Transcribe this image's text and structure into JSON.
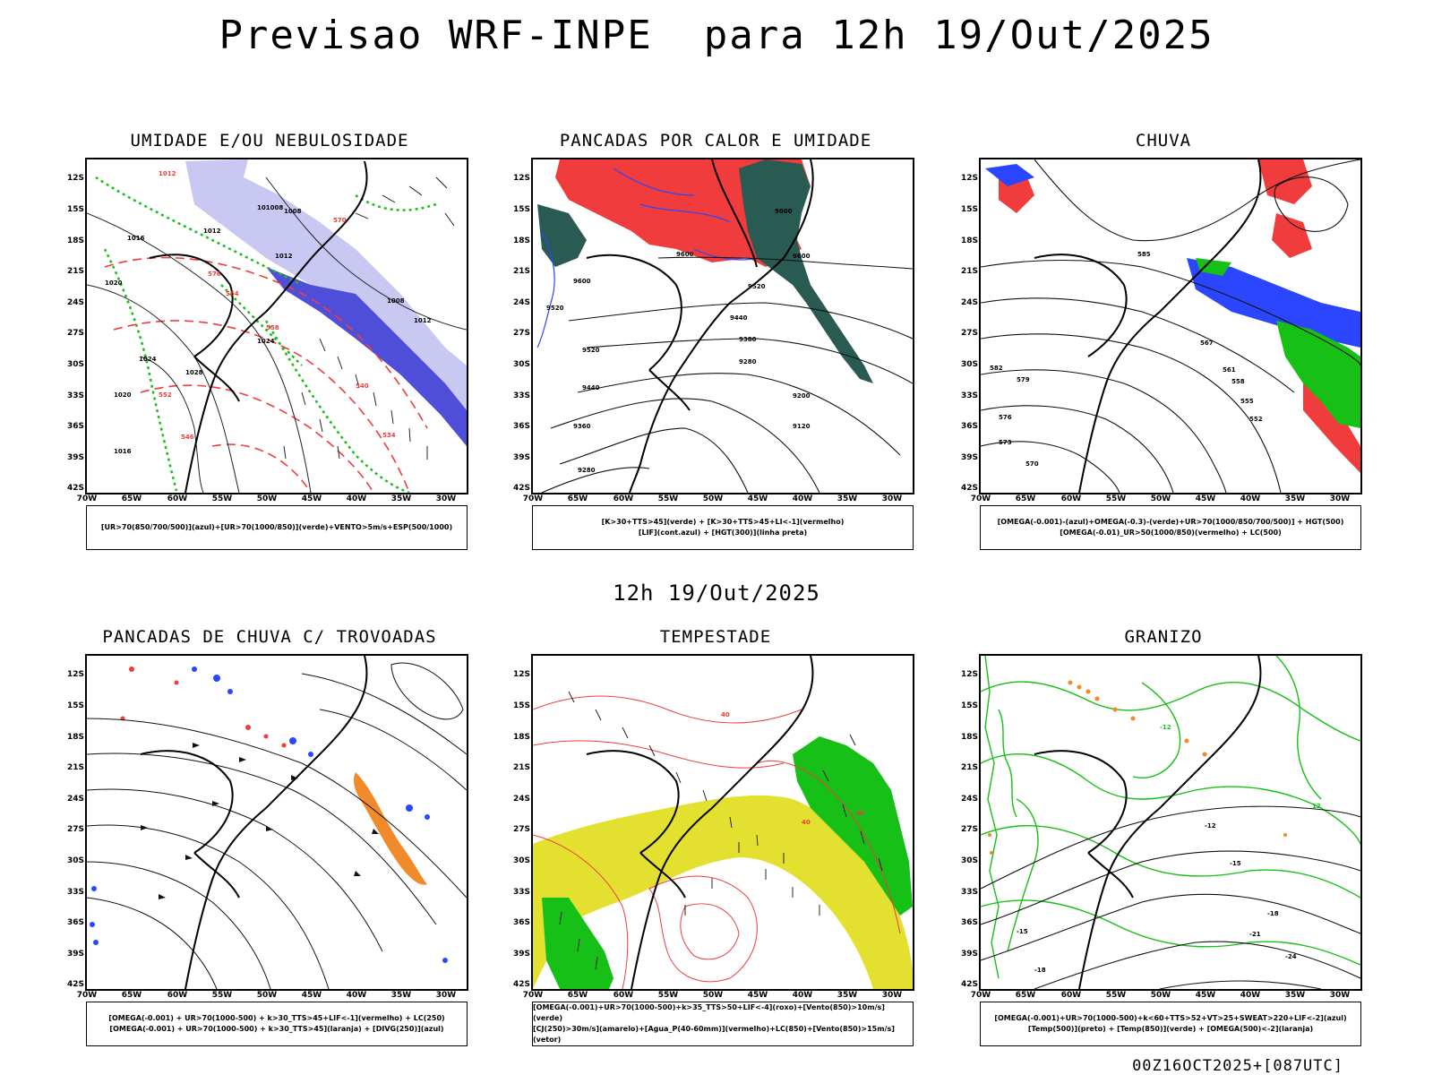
{
  "main_title": "Previsao WRF-INPE  para 12h 19/Out/2025",
  "mid_title": "12h 19/Out/2025",
  "footer": "00Z16OCT2025+[087UTC]",
  "axes": {
    "lat_labels": [
      "12S",
      "15S",
      "18S",
      "21S",
      "24S",
      "27S",
      "30S",
      "33S",
      "36S",
      "39S",
      "42S"
    ],
    "lon_labels": [
      "70W",
      "65W",
      "60W",
      "55W",
      "50W",
      "45W",
      "40W",
      "35W",
      "30W"
    ]
  },
  "colors": {
    "red": "#f03c3c",
    "green": "#17c017",
    "blue": "#2a46ff",
    "orange": "#f08a2a",
    "yellow": "#e4e030",
    "darkgreen": "#1f4f48",
    "lavender": "#b7b7ef",
    "purple": "#4c4cd8"
  },
  "panels": [
    {
      "title": "UMIDADE E/OU NEBULOSIDADE",
      "legend": [
        "[UR>70(850/700/500)](azul)+[UR>70(1000/850)](verde)+VENTO>5m/s+ESP(500/1000)"
      ],
      "labels": [
        "1012",
        "101008",
        "1008",
        "1012",
        "1016",
        "1012",
        "1020",
        "1024",
        "1028",
        "1024",
        "1020",
        "1012",
        "1008",
        "1016",
        "570",
        "576",
        "564",
        "558",
        "552",
        "546",
        "534",
        "540"
      ]
    },
    {
      "title": "PANCADAS POR CALOR E UMIDADE",
      "legend": [
        "[K>30+TTS>45](verde) + [K>30+TTS>45+LI<-1](vermelho)",
        "[LIF](cont.azul) + [HGT(300)](linha preta)"
      ],
      "labels": [
        "9600",
        "9600",
        "9600",
        "9520",
        "9520",
        "9600",
        "9440",
        "9380",
        "9280",
        "9520",
        "9440",
        "9360",
        "9200",
        "9120",
        "9280"
      ]
    },
    {
      "title": "CHUVA",
      "legend": [
        "[OMEGA(-0.001)-(azul)+OMEGA(-0.3)-(verde)+UR>70(1000/850/700/500)] + HGT(500)",
        "[OMEGA(-0.01)_UR>50(1000/850)(vermelho) + LC(500)"
      ],
      "labels": [
        "585",
        "582",
        "579",
        "576",
        "573",
        "570",
        "567",
        "561",
        "558",
        "555",
        "552"
      ]
    },
    {
      "title": "PANCADAS DE CHUVA C/ TROVOADAS",
      "legend": [
        "[OMEGA(-0.001) + UR>70(1000-500) + k>30_TTS>45+LIF<-1](vermelho) + LC(250)",
        "[OMEGA(-0.001) + UR>70(1000-500) + k>30_TTS>45](laranja) + [DIVG(250)](azul)"
      ],
      "labels": []
    },
    {
      "title": "TEMPESTADE",
      "legend": [
        "[OMEGA(-0.001)+UR>70(1000-500)+k>35_TTS>50+LIF<-4](roxo)+[Vento(850)>10m/s](verde)",
        "[CJ(250)>30m/s](amarelo)+[Agua_P(40-60mm)](vermelho)+LC(850)+[Vento(850)>15m/s](vetor)"
      ],
      "labels": [
        "40",
        "40",
        "40"
      ]
    },
    {
      "title": "GRANIZO",
      "legend": [
        "[OMEGA(-0.001)+UR>70(1000-500)+k<60+TTS>52+VT>25+SWEAT>220+LIF<-2](azul)",
        "[Temp(500)](preto) + [Temp(850)](verde) + [OMEGA(500)<-2](laranja)"
      ],
      "labels": [
        "-12",
        "-15",
        "-18",
        "-21",
        "-24",
        "-18",
        "-15",
        "-12",
        "12"
      ]
    }
  ]
}
